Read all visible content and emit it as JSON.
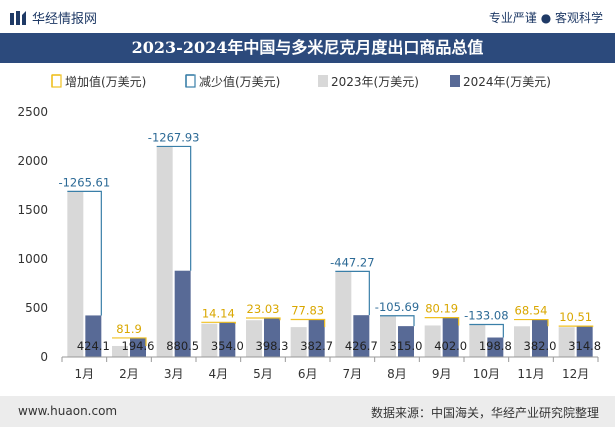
{
  "header": {
    "brand": "华经情报网",
    "slogan": "专业严谨 ● 客观科学"
  },
  "footer": {
    "url": "www.huaon.com",
    "source": "数据来源：中国海关，华经产业研究院整理"
  },
  "colors": {
    "increase": "#f0c020",
    "decrease": "#3a7fa8",
    "y2023": "#d8d8d8",
    "y2024": "#586a96",
    "title_bg": "#2c4a7c"
  },
  "chart_data": {
    "type": "bar",
    "title": "2023-2024年中国与多米尼克月度出口商品总值",
    "categories": [
      "1月",
      "2月",
      "3月",
      "4月",
      "5月",
      "6月",
      "7月",
      "8月",
      "9月",
      "10月",
      "11月",
      "12月"
    ],
    "series": [
      {
        "name": "2023年(万美元)",
        "values": [
          1689.71,
          112.7,
          2148.43,
          339.86,
          375.27,
          304.87,
          874.07,
          420.69,
          321.81,
          331.88,
          313.46,
          304.29
        ]
      },
      {
        "name": "2024年(万美元)",
        "values": [
          424.1,
          194.6,
          880.5,
          354.0,
          398.3,
          382.7,
          426.7,
          315.0,
          402.0,
          198.8,
          382.0,
          314.8
        ]
      }
    ],
    "change": {
      "increase_name": "增加值(万美元)",
      "decrease_name": "减少值(万美元)",
      "values": [
        -1265.61,
        81.9,
        -1267.93,
        14.14,
        23.03,
        77.83,
        -447.27,
        -105.69,
        80.19,
        -133.08,
        68.54,
        10.51
      ],
      "labels": [
        "-1265.61",
        "81.9",
        "-1267.93",
        "14.14",
        "23.03",
        "77.83",
        "-447.27",
        "-105.69",
        "80.19",
        "-133.08",
        "68.54",
        "10.51"
      ]
    },
    "value_labels_2024": [
      "424.1",
      "194.6",
      "880.5",
      "354.0",
      "398.3",
      "382.7",
      "426.7",
      "315.0",
      "402.0",
      "198.8",
      "382.0",
      "314.8"
    ],
    "ylim": [
      0,
      2500
    ],
    "yticks": [
      "0",
      "500",
      "1000",
      "1500",
      "2000",
      "2500"
    ],
    "legend_position": "top",
    "grid": false
  }
}
